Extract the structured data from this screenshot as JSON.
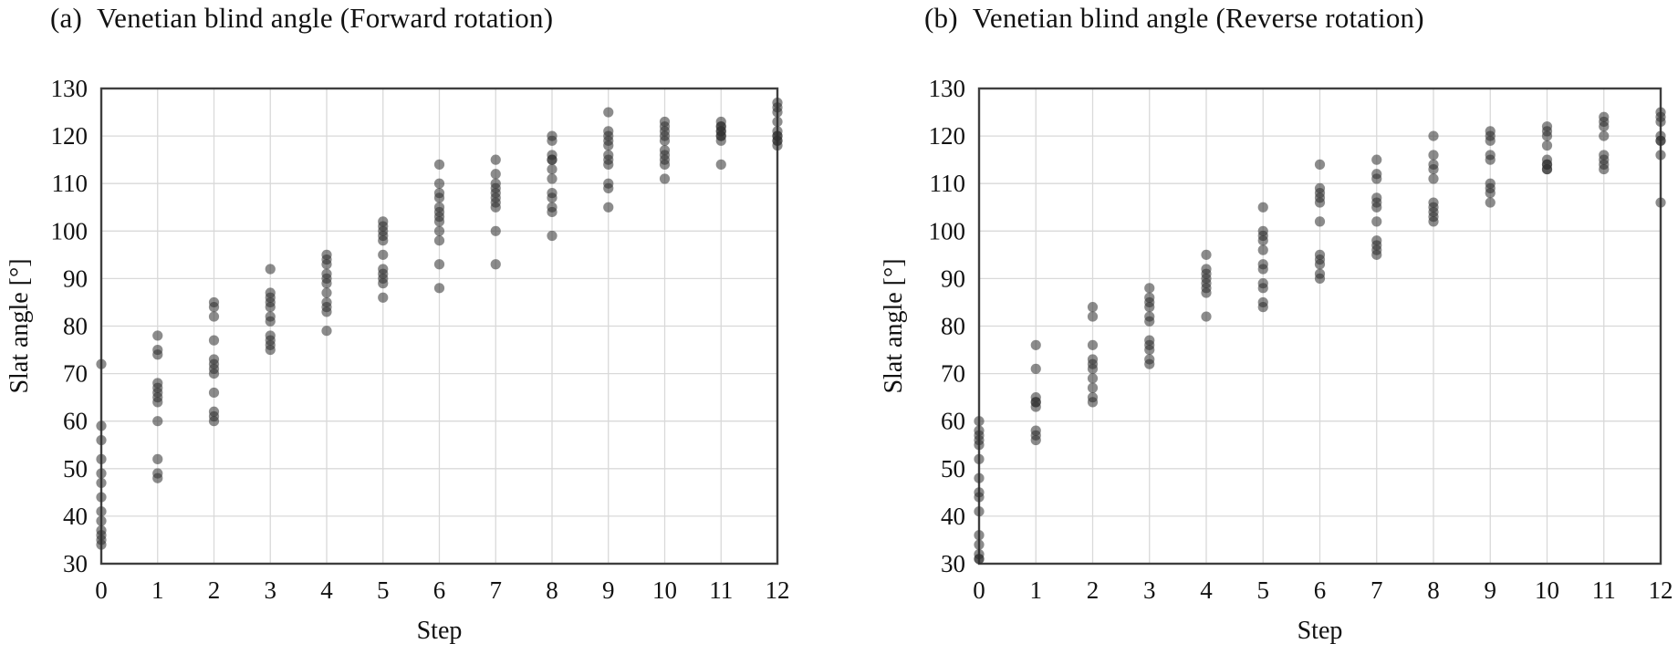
{
  "figure": {
    "background": "#ffffff",
    "text_color": "#121212",
    "grid_color": "#d9d9d9",
    "border_color": "#3f3f3f"
  },
  "chart_data": [
    {
      "type": "scatter",
      "panel_label": "(a)",
      "title": "Venetian blind angle (Forward rotation)",
      "xlabel": "Step",
      "ylabel": "Slat angle [°]",
      "xlim": [
        0,
        12
      ],
      "ylim": [
        30,
        130
      ],
      "x_ticks": [
        0,
        1,
        2,
        3,
        4,
        5,
        6,
        7,
        8,
        9,
        10,
        11,
        12
      ],
      "y_ticks": [
        30,
        40,
        50,
        60,
        70,
        80,
        90,
        100,
        110,
        120,
        130
      ],
      "grid": true,
      "legend": "none",
      "marker_color": "#2d2d2d",
      "marker_opacity": 0.55,
      "steps": [
        {
          "step": 0,
          "values": [
            72,
            59,
            56,
            52,
            49,
            47,
            44,
            41,
            39,
            37,
            36,
            35,
            34
          ]
        },
        {
          "step": 1,
          "values": [
            78,
            75,
            74,
            68,
            67,
            66,
            65,
            64,
            60,
            52,
            49,
            48
          ]
        },
        {
          "step": 2,
          "values": [
            85,
            84,
            82,
            77,
            73,
            72,
            71,
            70,
            66,
            62,
            61,
            60
          ]
        },
        {
          "step": 3,
          "values": [
            92,
            87,
            86,
            85,
            84,
            82,
            81,
            78,
            77,
            76,
            75
          ]
        },
        {
          "step": 4,
          "values": [
            95,
            94,
            93,
            91,
            90,
            89,
            87,
            85,
            84,
            83,
            79
          ]
        },
        {
          "step": 5,
          "values": [
            102,
            101,
            100,
            99,
            98,
            95,
            92,
            91,
            90,
            89,
            86
          ]
        },
        {
          "step": 6,
          "values": [
            114,
            110,
            108,
            107,
            105,
            104,
            103,
            102,
            100,
            98,
            93,
            88
          ]
        },
        {
          "step": 7,
          "values": [
            115,
            112,
            110,
            109,
            108,
            107,
            106,
            105,
            100,
            93
          ]
        },
        {
          "step": 8,
          "values": [
            120,
            119,
            116,
            115,
            115,
            113,
            111,
            108,
            107,
            105,
            104,
            99
          ]
        },
        {
          "step": 9,
          "values": [
            125,
            121,
            120,
            119,
            118,
            116,
            115,
            114,
            110,
            109,
            105
          ]
        },
        {
          "step": 10,
          "values": [
            123,
            122,
            121,
            120,
            119,
            117,
            116,
            115,
            114,
            111
          ]
        },
        {
          "step": 11,
          "values": [
            123,
            122,
            122,
            121,
            121,
            120,
            120,
            119,
            114
          ]
        },
        {
          "step": 12,
          "values": [
            127,
            126,
            125,
            123,
            121,
            120,
            120,
            119,
            119,
            118
          ]
        }
      ]
    },
    {
      "type": "scatter",
      "panel_label": "(b)",
      "title": "Venetian blind angle (Reverse rotation)",
      "xlabel": "Step",
      "ylabel": "Slat angle [°]",
      "xlim": [
        0,
        12
      ],
      "ylim": [
        30,
        130
      ],
      "x_ticks": [
        0,
        1,
        2,
        3,
        4,
        5,
        6,
        7,
        8,
        9,
        10,
        11,
        12
      ],
      "y_ticks": [
        30,
        40,
        50,
        60,
        70,
        80,
        90,
        100,
        110,
        120,
        130
      ],
      "grid": true,
      "legend": "none",
      "marker_color": "#2d2d2d",
      "marker_opacity": 0.55,
      "steps": [
        {
          "step": 0,
          "values": [
            60,
            58,
            57,
            56,
            55,
            52,
            48,
            45,
            44,
            41,
            36,
            34,
            32,
            31,
            31
          ]
        },
        {
          "step": 1,
          "values": [
            76,
            71,
            65,
            64,
            64,
            63,
            58,
            57,
            56
          ]
        },
        {
          "step": 2,
          "values": [
            84,
            82,
            76,
            73,
            72,
            71,
            69,
            67,
            65,
            64
          ]
        },
        {
          "step": 3,
          "values": [
            88,
            86,
            85,
            84,
            82,
            81,
            77,
            76,
            75,
            73,
            72
          ]
        },
        {
          "step": 4,
          "values": [
            95,
            92,
            91,
            90,
            89,
            88,
            87,
            82
          ]
        },
        {
          "step": 5,
          "values": [
            105,
            100,
            99,
            98,
            96,
            93,
            92,
            89,
            88,
            85,
            84
          ]
        },
        {
          "step": 6,
          "values": [
            114,
            109,
            108,
            107,
            106,
            102,
            95,
            94,
            93,
            91,
            90
          ]
        },
        {
          "step": 7,
          "values": [
            115,
            112,
            111,
            107,
            106,
            105,
            102,
            98,
            97,
            96,
            95
          ]
        },
        {
          "step": 8,
          "values": [
            120,
            116,
            114,
            113,
            111,
            106,
            105,
            104,
            103,
            102
          ]
        },
        {
          "step": 9,
          "values": [
            121,
            120,
            119,
            116,
            115,
            110,
            109,
            108,
            106
          ]
        },
        {
          "step": 10,
          "values": [
            122,
            121,
            120,
            118,
            115,
            114,
            114,
            113,
            113
          ]
        },
        {
          "step": 11,
          "values": [
            124,
            123,
            122,
            120,
            116,
            115,
            114,
            113
          ]
        },
        {
          "step": 12,
          "values": [
            125,
            124,
            123,
            120,
            119,
            119,
            116,
            106
          ]
        }
      ]
    }
  ]
}
